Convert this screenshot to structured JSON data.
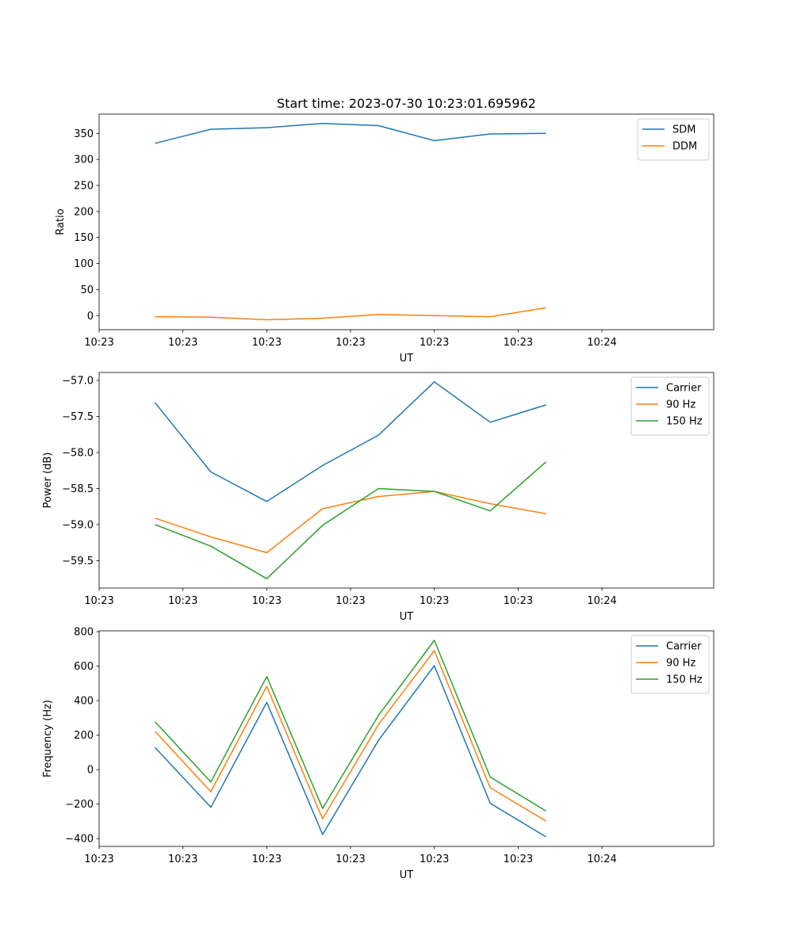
{
  "figure": {
    "title": "Start time: 2023-07-30 10:23:01.695962"
  },
  "chart_data": [
    {
      "type": "line",
      "title": "Start time: 2023-07-30 10:23:01.695962",
      "xlabel": "UT",
      "ylabel": "Ratio",
      "xlim": [
        0,
        11
      ],
      "x": [
        1,
        2,
        3,
        4,
        5,
        6,
        7,
        8
      ],
      "xticks": [
        0,
        1.5,
        3,
        4.5,
        6,
        7.5,
        9
      ],
      "xtick_labels": [
        "10:23",
        "10:23",
        "10:23",
        "10:23",
        "10:23",
        "10:23",
        "10:24"
      ],
      "ylim": [
        -27,
        387
      ],
      "yticks": [
        0,
        50,
        100,
        150,
        200,
        250,
        300,
        350
      ],
      "ytick_labels": [
        "0",
        "50",
        "100",
        "150",
        "200",
        "250",
        "300",
        "350"
      ],
      "legend_position": "top-right",
      "series": [
        {
          "name": "SDM",
          "color": "#1f77b4",
          "values": [
            331,
            358,
            361,
            369,
            365,
            336,
            349,
            350
          ]
        },
        {
          "name": "DDM",
          "color": "#ff7f0e",
          "values": [
            -2,
            -3,
            -8,
            -5,
            2,
            0,
            -2,
            15
          ]
        }
      ]
    },
    {
      "type": "line",
      "title": "",
      "xlabel": "UT",
      "ylabel": "Power (dB)",
      "xlim": [
        0,
        11
      ],
      "x": [
        1,
        2,
        3,
        4,
        5,
        6,
        7,
        8
      ],
      "xticks": [
        0,
        1.5,
        3,
        4.5,
        6,
        7.5,
        9
      ],
      "xtick_labels": [
        "10:23",
        "10:23",
        "10:23",
        "10:23",
        "10:23",
        "10:23",
        "10:24"
      ],
      "ylim": [
        -59.88,
        -56.89
      ],
      "yticks": [
        -59.5,
        -59.0,
        -58.5,
        -58.0,
        -57.5,
        -57.0
      ],
      "ytick_labels": [
        "−59.5",
        "−59.0",
        "−58.5",
        "−58.0",
        "−57.5",
        "−57.0"
      ],
      "legend_position": "top-right",
      "series": [
        {
          "name": "Carrier",
          "color": "#1f77b4",
          "values": [
            -57.31,
            -58.27,
            -58.68,
            -58.18,
            -57.76,
            -57.02,
            -57.58,
            -57.34
          ]
        },
        {
          "name": "90 Hz",
          "color": "#ff7f0e",
          "values": [
            -58.91,
            -59.17,
            -59.39,
            -58.78,
            -58.61,
            -58.54,
            -58.71,
            -58.85
          ]
        },
        {
          "name": "150 Hz",
          "color": "#2ca02c",
          "values": [
            -59.0,
            -59.3,
            -59.75,
            -59.01,
            -58.5,
            -58.54,
            -58.81,
            -58.13
          ]
        }
      ]
    },
    {
      "type": "line",
      "title": "",
      "xlabel": "UT",
      "ylabel": "Frequency (Hz)",
      "xlim": [
        0,
        11
      ],
      "x": [
        1,
        2,
        3,
        4,
        5,
        6,
        7,
        8
      ],
      "xticks": [
        0,
        1.5,
        3,
        4.5,
        6,
        7.5,
        9
      ],
      "xtick_labels": [
        "10:23",
        "10:23",
        "10:23",
        "10:23",
        "10:23",
        "10:23",
        "10:24"
      ],
      "ylim": [
        -445,
        805
      ],
      "yticks": [
        -400,
        -200,
        0,
        200,
        400,
        600,
        800
      ],
      "ytick_labels": [
        "−400",
        "−200",
        "0",
        "200",
        "400",
        "600",
        "800"
      ],
      "legend_position": "top-right",
      "series": [
        {
          "name": "Carrier",
          "color": "#1f77b4",
          "values": [
            128,
            -218,
            390,
            -376,
            170,
            603,
            -195,
            -390
          ]
        },
        {
          "name": "90 Hz",
          "color": "#ff7f0e",
          "values": [
            222,
            -128,
            483,
            -285,
            262,
            690,
            -105,
            -298
          ]
        },
        {
          "name": "150 Hz",
          "color": "#2ca02c",
          "values": [
            278,
            -72,
            540,
            -225,
            315,
            750,
            -43,
            -240
          ]
        }
      ]
    }
  ]
}
